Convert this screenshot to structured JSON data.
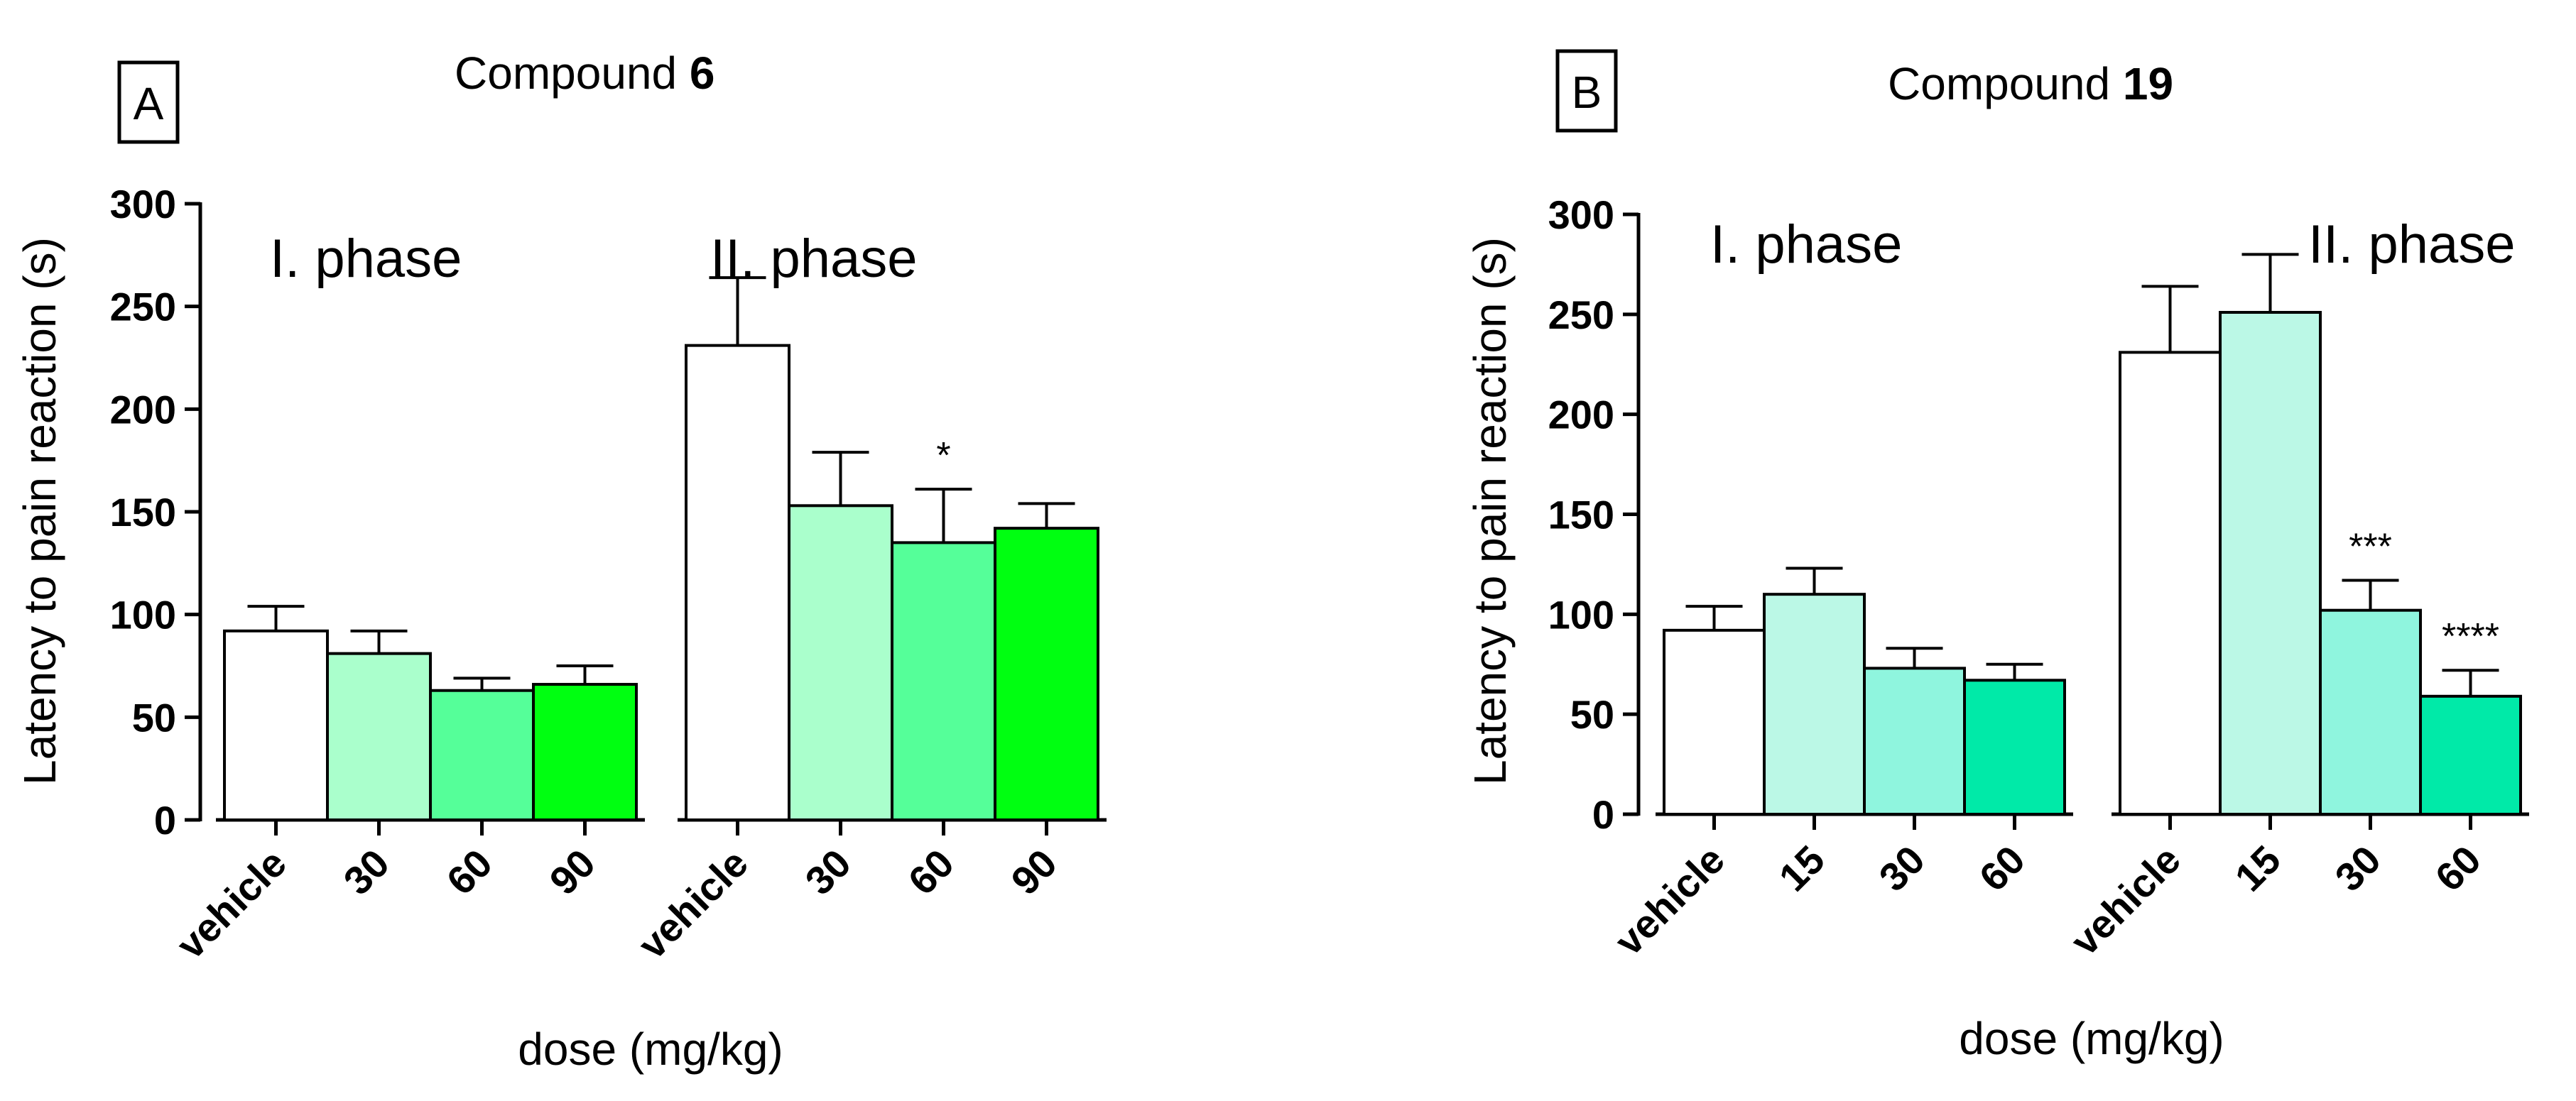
{
  "chart_data": [
    {
      "type": "bar",
      "panel": "A",
      "title": "Compound",
      "title_compound": "6",
      "xlabel": "dose (mg/kg)",
      "ylabel": "Latency to pain reaction (s)",
      "ylim": [
        0,
        300
      ],
      "yticks": [
        0,
        50,
        100,
        150,
        200,
        250,
        300
      ],
      "error_bars": "SEM (upper)",
      "groups": [
        {
          "name": "I. phase",
          "categories": [
            "vehicle",
            "30",
            "60",
            "90"
          ],
          "values": [
            92,
            81,
            63,
            66
          ],
          "errors": [
            12,
            11,
            6,
            9
          ],
          "significance": [
            "",
            "",
            "",
            ""
          ],
          "colors": [
            "#ffffff",
            "#aaffcc",
            "#55ff99",
            "#00ff11"
          ]
        },
        {
          "name": "II. phase",
          "categories": [
            "vehicle",
            "30",
            "60",
            "90"
          ],
          "values": [
            231,
            153,
            135,
            142
          ],
          "errors": [
            33,
            26,
            26,
            12
          ],
          "significance": [
            "",
            "",
            "*",
            ""
          ],
          "colors": [
            "#ffffff",
            "#aaffcc",
            "#55ff99",
            "#00ff11"
          ]
        }
      ]
    },
    {
      "type": "bar",
      "panel": "B",
      "title": "Compound",
      "title_compound": "19",
      "xlabel": "dose (mg/kg)",
      "ylabel": "Latency to pain reaction (s)",
      "ylim": [
        0,
        300
      ],
      "yticks": [
        0,
        50,
        100,
        150,
        200,
        250,
        300
      ],
      "error_bars": "SEM (upper)",
      "groups": [
        {
          "name": "I. phase",
          "categories": [
            "vehicle",
            "15",
            "30",
            "60"
          ],
          "values": [
            92,
            110,
            73,
            67
          ],
          "errors": [
            12,
            13,
            10,
            8
          ],
          "significance": [
            "",
            "",
            "",
            ""
          ],
          "colors": [
            "#ffffff",
            "#bbf8e6",
            "#8ff5de",
            "#00eaa8"
          ]
        },
        {
          "name": "II. phase",
          "categories": [
            "vehicle",
            "15",
            "30",
            "60"
          ],
          "values": [
            231,
            251,
            102,
            59
          ],
          "errors": [
            33,
            29,
            15,
            13
          ],
          "significance": [
            "",
            "",
            "***",
            "****"
          ],
          "colors": [
            "#ffffff",
            "#bbf8e6",
            "#8ff5de",
            "#00eaa8"
          ]
        }
      ]
    }
  ]
}
